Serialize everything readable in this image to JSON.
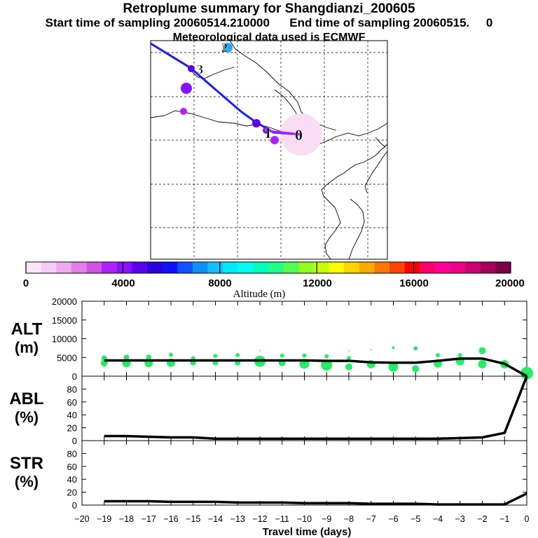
{
  "header": {
    "title": "Retroplume summary for Shangdianzi_200605",
    "subtitle_start": "Start time of sampling 20060514.210000      End time of sampling 20060515.     0",
    "subtitle_met": "Meteorological data used is ECMWF"
  },
  "colors": {
    "trajectory": "#1a1aff",
    "trajectory_end": "#b020ff",
    "release_halo": "#fadcf5",
    "alt_dot": "#22ee66",
    "line": "#000000"
  },
  "map": {
    "trajectory_labels": [
      "0",
      "1",
      "2",
      "3"
    ]
  },
  "colorbar": {
    "colors": [
      "#fbe6fb",
      "#f6cdf6",
      "#eeaaf0",
      "#e080e8",
      "#cc55e6",
      "#b020ff",
      "#8a10ff",
      "#5a00ee",
      "#2a00dd",
      "#1010ff",
      "#1050ff",
      "#1090ff",
      "#10c0ff",
      "#00eaff",
      "#00ffee",
      "#00ffbb",
      "#20ff88",
      "#50ff50",
      "#90ff20",
      "#c8ff00",
      "#ffff00",
      "#ffd400",
      "#ffaa00",
      "#ff7700",
      "#ff4400",
      "#ff0000",
      "#ff0066",
      "#ff0099",
      "#ee0088",
      "#cc0077",
      "#a8005e",
      "#7a0048"
    ],
    "tick_labels": [
      "0",
      "4000",
      "8000",
      "12000",
      "16000",
      "20000"
    ],
    "label": "Altitude  (m)"
  },
  "chart_data": [
    {
      "type": "line",
      "panel": "ALT",
      "ylabel": "ALT\n(m)",
      "yticks": [
        "20000",
        "15000",
        "10000",
        "5000",
        "0"
      ],
      "ylim": [
        0,
        20000
      ],
      "x": [
        -19,
        -18,
        -17,
        -16,
        -15,
        -14,
        -13,
        -12,
        -11,
        -10,
        -9,
        -8,
        -7,
        -6,
        -5,
        -4,
        -3,
        -2,
        -1,
        0
      ],
      "y": [
        4200,
        4200,
        4200,
        4200,
        4200,
        4200,
        4200,
        4200,
        4200,
        4200,
        4100,
        4100,
        3700,
        3600,
        3600,
        4100,
        4700,
        4700,
        3300,
        0
      ],
      "scatter_dots": [
        {
          "x": -19,
          "y": 3500,
          "r": 5
        },
        {
          "x": -19,
          "y": 4800,
          "r": 4
        },
        {
          "x": -18,
          "y": 3500,
          "r": 6
        },
        {
          "x": -18,
          "y": 5000,
          "r": 4
        },
        {
          "x": -17,
          "y": 3500,
          "r": 6
        },
        {
          "x": -17,
          "y": 5000,
          "r": 4
        },
        {
          "x": -16,
          "y": 3600,
          "r": 6
        },
        {
          "x": -16,
          "y": 5700,
          "r": 3
        },
        {
          "x": -15,
          "y": 3600,
          "r": 4
        },
        {
          "x": -15,
          "y": 4800,
          "r": 3
        },
        {
          "x": -14,
          "y": 3600,
          "r": 4
        },
        {
          "x": -14,
          "y": 5400,
          "r": 3
        },
        {
          "x": -13,
          "y": 3600,
          "r": 4
        },
        {
          "x": -13,
          "y": 5600,
          "r": 3
        },
        {
          "x": -12,
          "y": 4000,
          "r": 8
        },
        {
          "x": -12,
          "y": 6800,
          "r": 1
        },
        {
          "x": -11,
          "y": 3600,
          "r": 5
        },
        {
          "x": -11,
          "y": 5500,
          "r": 3
        },
        {
          "x": -10,
          "y": 3300,
          "r": 7
        },
        {
          "x": -10,
          "y": 5500,
          "r": 3
        },
        {
          "x": -9,
          "y": 3000,
          "r": 8
        },
        {
          "x": -9,
          "y": 5300,
          "r": 3
        },
        {
          "x": -8,
          "y": 2500,
          "r": 5
        },
        {
          "x": -8,
          "y": 4800,
          "r": 3
        },
        {
          "x": -8,
          "y": 6800,
          "r": 1
        },
        {
          "x": -7,
          "y": 3200,
          "r": 6
        },
        {
          "x": -7,
          "y": 7000,
          "r": 1
        },
        {
          "x": -6,
          "y": 2500,
          "r": 7
        },
        {
          "x": -6,
          "y": 7600,
          "r": 2
        },
        {
          "x": -5,
          "y": 2000,
          "r": 5
        },
        {
          "x": -5,
          "y": 7400,
          "r": 3
        },
        {
          "x": -4,
          "y": 3400,
          "r": 6
        },
        {
          "x": -4,
          "y": 5600,
          "r": 3
        },
        {
          "x": -3,
          "y": 4000,
          "r": 6
        },
        {
          "x": -3,
          "y": 5600,
          "r": 3
        },
        {
          "x": -2,
          "y": 3200,
          "r": 6
        },
        {
          "x": -2,
          "y": 6800,
          "r": 5
        },
        {
          "x": -1,
          "y": 3200,
          "r": 6
        },
        {
          "x": 0,
          "y": 800,
          "r": 9
        }
      ]
    },
    {
      "type": "line",
      "panel": "ABL",
      "ylabel": "ABL\n(%)",
      "yticks": [
        "80",
        "60",
        "40",
        "20",
        "0"
      ],
      "ylim": [
        0,
        100
      ],
      "x": [
        -19,
        -18,
        -17,
        -16,
        -15,
        -14,
        -13,
        -12,
        -11,
        -10,
        -9,
        -8,
        -7,
        -6,
        -5,
        -4,
        -3,
        -2,
        -1,
        0
      ],
      "y": [
        7,
        7,
        6,
        5,
        5,
        3,
        3,
        3,
        3,
        3,
        3,
        3,
        3,
        3,
        3,
        3,
        4,
        5,
        12,
        100
      ]
    },
    {
      "type": "line",
      "panel": "STR",
      "ylabel": "STR\n(%)",
      "yticks": [
        "80",
        "60",
        "40",
        "20",
        "0"
      ],
      "ylim": [
        0,
        100
      ],
      "x": [
        -19,
        -18,
        -17,
        -16,
        -15,
        -14,
        -13,
        -12,
        -11,
        -10,
        -9,
        -8,
        -7,
        -6,
        -5,
        -4,
        -3,
        -2,
        -1,
        0
      ],
      "y": [
        6,
        6,
        6,
        5,
        5,
        5,
        4,
        4,
        4,
        3,
        3,
        3,
        2,
        2,
        2,
        1,
        1,
        1,
        1,
        18
      ]
    },
    {
      "type": "axis",
      "panel": "shared-x",
      "xlabel": "Travel time (days)",
      "xticks": [
        "−20",
        "−19",
        "−18",
        "−17",
        "−16",
        "−15",
        "−14",
        "−13",
        "−12",
        "−11",
        "−10",
        "−9",
        "−8",
        "−7",
        "−6",
        "−5",
        "−4",
        "−3",
        "−2",
        "−1",
        "0"
      ],
      "xlim": [
        -20,
        0
      ]
    }
  ]
}
